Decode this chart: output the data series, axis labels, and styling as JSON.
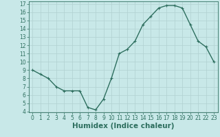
{
  "x": [
    0,
    1,
    2,
    3,
    4,
    5,
    6,
    7,
    8,
    9,
    10,
    11,
    12,
    13,
    14,
    15,
    16,
    17,
    18,
    19,
    20,
    21,
    22,
    23
  ],
  "y": [
    9.0,
    8.5,
    8.0,
    7.0,
    6.5,
    6.5,
    6.5,
    4.5,
    4.2,
    5.5,
    8.0,
    11.0,
    11.5,
    12.5,
    14.5,
    15.5,
    16.5,
    16.8,
    16.8,
    16.5,
    14.5,
    12.5,
    11.8,
    10.0
  ],
  "line_color": "#2d6e5e",
  "marker": "+",
  "bg_color": "#c8e8e8",
  "grid_color": "#b0d0d0",
  "xlabel": "Humidex (Indice chaleur)",
  "ylim": [
    4,
    17
  ],
  "xlim": [
    -0.5,
    23.5
  ],
  "yticks": [
    4,
    5,
    6,
    7,
    8,
    9,
    10,
    11,
    12,
    13,
    14,
    15,
    16,
    17
  ],
  "xticks": [
    0,
    1,
    2,
    3,
    4,
    5,
    6,
    7,
    8,
    9,
    10,
    11,
    12,
    13,
    14,
    15,
    16,
    17,
    18,
    19,
    20,
    21,
    22,
    23
  ],
  "tick_fontsize": 5.5,
  "label_fontsize": 7.5
}
